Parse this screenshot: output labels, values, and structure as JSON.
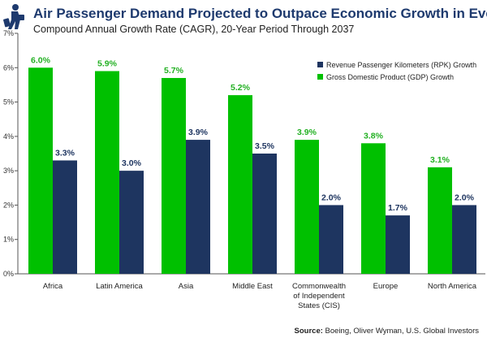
{
  "chart_data": {
    "type": "bar",
    "title": "Air Passenger Demand Projected to Outpace Economic Growth in Every Region",
    "subtitle": "Compound Annual Growth Rate (CAGR), 20-Year Period Through 2037",
    "categories": [
      [
        "Africa"
      ],
      [
        "Latin America"
      ],
      [
        "Asia"
      ],
      [
        "Middle East"
      ],
      [
        "Commonwealth",
        "of Independent",
        "States (CIS)"
      ],
      [
        "Europe"
      ],
      [
        "North America"
      ]
    ],
    "series": [
      {
        "name": "Gross Domestic Product (GDP) Growth",
        "color": "#00c000",
        "label_color": "#22b022",
        "values": [
          6.0,
          5.9,
          5.7,
          5.2,
          3.9,
          3.8,
          3.1
        ]
      },
      {
        "name": "Revenue Passenger Kilometers (RPK) Growth",
        "color": "#1e3560",
        "label_color": "#1e3560",
        "values": [
          3.3,
          3.0,
          3.9,
          3.5,
          2.0,
          1.7,
          2.0
        ]
      }
    ],
    "legend_order": [
      1,
      0
    ],
    "legend_position": "top-right",
    "ylim": [
      0,
      7
    ],
    "yticks": [
      "0%",
      "1%",
      "2%",
      "3%",
      "4%",
      "5%",
      "6%",
      "7%"
    ],
    "source_label": "Source:",
    "source_text": "Boeing, Oliver Wyman, U.S. Global Investors"
  }
}
